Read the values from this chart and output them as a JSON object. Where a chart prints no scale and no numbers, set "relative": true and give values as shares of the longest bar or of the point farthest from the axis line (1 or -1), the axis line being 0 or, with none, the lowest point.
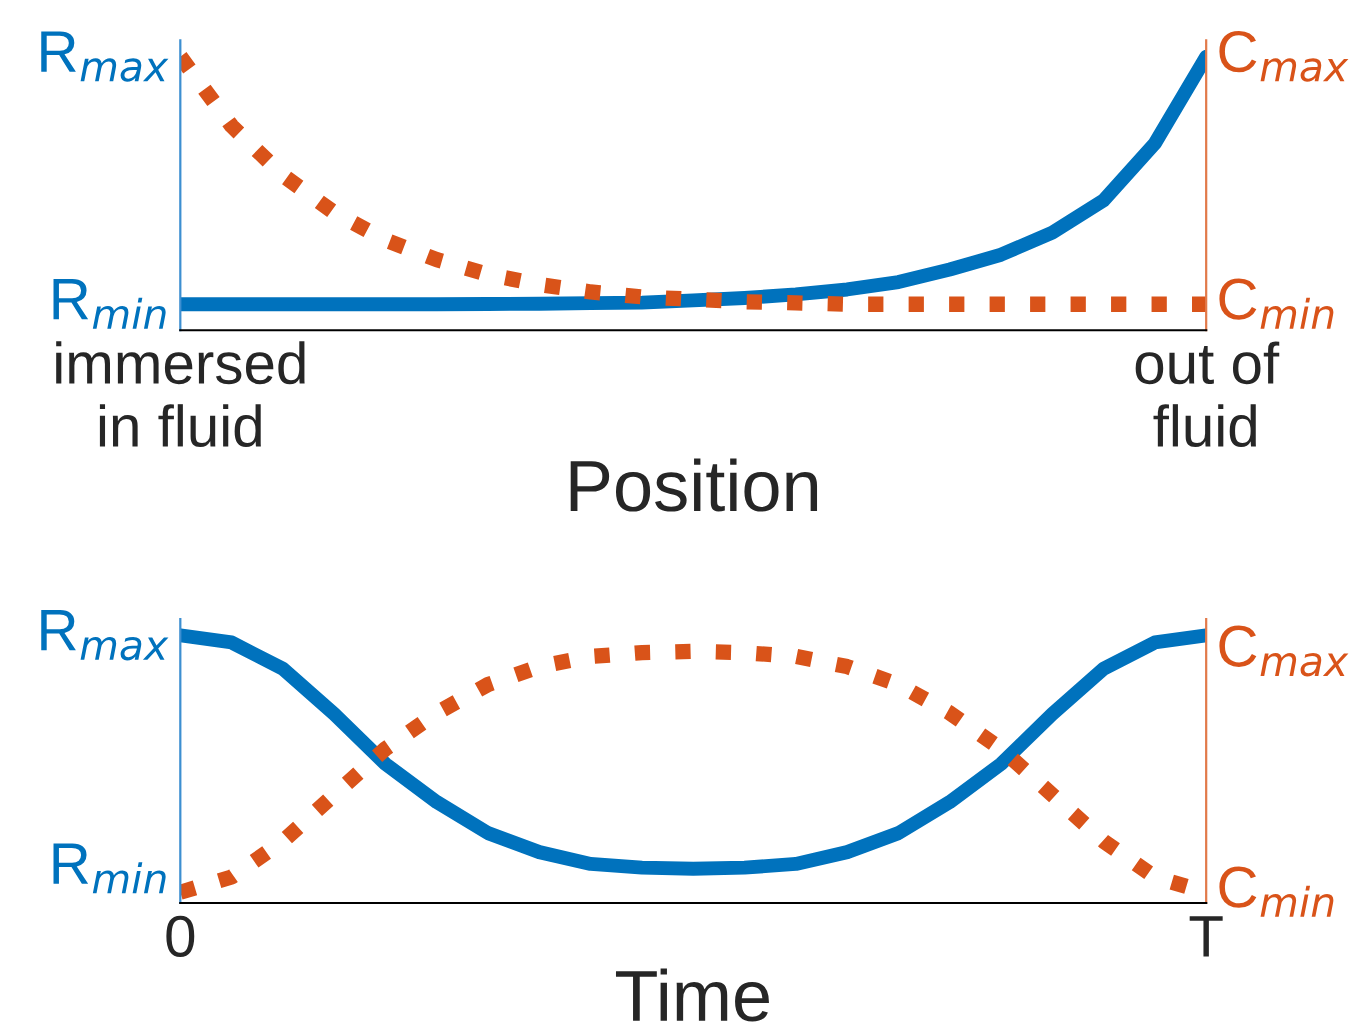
{
  "chart_data": [
    {
      "type": "line",
      "relative": true,
      "xlabel": "Position",
      "categories": [
        "immersed\nin fluid",
        null,
        null,
        null,
        null,
        null,
        null,
        null,
        null,
        null,
        null,
        null,
        null,
        null,
        null,
        null,
        null,
        null,
        null,
        null,
        "out of\nfluid"
      ],
      "annotations": [
        "R$_{max}$",
        "R$_{min}$",
        "C$_{max}$",
        "C$_{min}$"
      ],
      "grid": false,
      "series": [
        {
          "color": "#0072bd",
          "line_style": "solid",
          "values": [
            0.095,
            0.095,
            0.095,
            0.095,
            0.095,
            0.095,
            0.096,
            0.097,
            0.099,
            0.101,
            0.109,
            0.118,
            0.131,
            0.149,
            0.176,
            0.222,
            0.276,
            0.357,
            0.475,
            0.683,
            1
          ]
        },
        {
          "color": "#d95319",
          "line_style": "dotted",
          "values": [
            1,
            0.747,
            0.566,
            0.43,
            0.33,
            0.258,
            0.204,
            0.167,
            0.14,
            0.122,
            0.113,
            0.104,
            0.1,
            0.095,
            0.095,
            0.095,
            0.095,
            0.095,
            0.095,
            0.095,
            0.095
          ]
        }
      ]
    },
    {
      "type": "line",
      "relative": true,
      "xlabel": "Time",
      "categories": [
        "0",
        null,
        null,
        null,
        null,
        null,
        null,
        null,
        null,
        null,
        null,
        null,
        null,
        null,
        null,
        null,
        null,
        null,
        null,
        null,
        "T"
      ],
      "annotations": [
        "R$_{max}$",
        "R$_{min}$",
        "C$_{max}$",
        "C$_{min}$"
      ],
      "grid": false,
      "series": [
        {
          "color": "#0072bd",
          "line_style": "solid",
          "values": [
            1,
            0.973,
            0.875,
            0.706,
            0.519,
            0.377,
            0.261,
            0.19,
            0.146,
            0.132,
            0.128,
            0.132,
            0.146,
            0.19,
            0.261,
            0.377,
            0.519,
            0.706,
            0.875,
            0.973,
            1
          ]
        },
        {
          "color": "#d95319",
          "line_style": "dotted",
          "values": [
            0.04,
            0.097,
            0.231,
            0.404,
            0.576,
            0.71,
            0.816,
            0.883,
            0.921,
            0.935,
            0.94,
            0.935,
            0.921,
            0.883,
            0.816,
            0.71,
            0.576,
            0.404,
            0.231,
            0.097,
            0.04
          ]
        }
      ]
    }
  ]
}
